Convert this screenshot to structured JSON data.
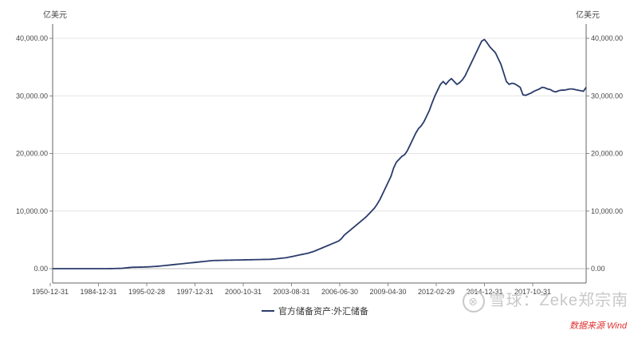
{
  "chart_data": {
    "type": "line",
    "title": "",
    "unit_left": "亿美元",
    "unit_right": "亿美元",
    "ylim": [
      0,
      42500
    ],
    "y_ticks": [
      0,
      10000,
      20000,
      30000,
      40000
    ],
    "y_tick_labels": [
      "0.00",
      "10,000.00",
      "20,000.00",
      "30,000.00",
      "40,000.00"
    ],
    "x_tick_labels": [
      "1950-12-31",
      "1984-12-31",
      "1995-02-28",
      "1997-12-31",
      "2000-10-31",
      "2003-08-31",
      "2006-06-30",
      "2009-04-30",
      "2012-02-29",
      "2014-12-31",
      "2017-10-31"
    ],
    "grid": true,
    "legend_position": "bottom-center",
    "series": [
      {
        "name": "官方储备资产:外汇储备",
        "color": "#2a3b6b",
        "values": [
          0,
          0,
          0,
          0,
          0,
          0,
          0,
          0,
          0,
          0,
          0,
          0,
          0,
          0,
          0,
          0,
          0,
          0,
          0,
          0,
          0,
          10,
          20,
          30,
          40,
          50,
          100,
          150,
          200,
          240,
          250,
          260,
          270,
          280,
          300,
          320,
          350,
          380,
          410,
          450,
          500,
          550,
          600,
          650,
          700,
          750,
          800,
          850,
          900,
          950,
          1000,
          1050,
          1100,
          1150,
          1200,
          1250,
          1300,
          1350,
          1400,
          1420,
          1430,
          1440,
          1450,
          1460,
          1470,
          1480,
          1490,
          1500,
          1510,
          1520,
          1530,
          1540,
          1550,
          1560,
          1570,
          1580,
          1590,
          1600,
          1610,
          1620,
          1650,
          1700,
          1750,
          1800,
          1850,
          1900,
          2000,
          2100,
          2200,
          2300,
          2400,
          2500,
          2600,
          2700,
          2850,
          3000,
          3200,
          3400,
          3600,
          3800,
          4000,
          4200,
          4400,
          4600,
          4800,
          5200,
          5800,
          6200,
          6600,
          7000,
          7400,
          7800,
          8200,
          8600,
          9000,
          9500,
          10000,
          10500,
          11200,
          12000,
          13000,
          14000,
          15000,
          16000,
          17500,
          18500,
          19000,
          19500,
          19800,
          20500,
          21500,
          22500,
          23500,
          24300,
          24800,
          25500,
          26500,
          27500,
          28800,
          30000,
          31000,
          32000,
          32500,
          32000,
          32600,
          33000,
          32500,
          32000,
          32300,
          32800,
          33500,
          34500,
          35500,
          36500,
          37500,
          38500,
          39500,
          39800,
          39200,
          38500,
          38000,
          37500,
          36500,
          35500,
          34000,
          32500,
          32000,
          32200,
          32100,
          31800,
          31500,
          30200,
          30100,
          30300,
          30500,
          30800,
          31000,
          31200,
          31500,
          31400,
          31200,
          31100,
          30800,
          30700,
          30900,
          31000,
          31000,
          31100,
          31200,
          31200,
          31100,
          31000,
          30900,
          30800,
          31500
        ]
      }
    ]
  },
  "watermark": {
    "badge": "⊗",
    "text": "雪球：Zeke郑宗南",
    "source": "数据来源 Wind"
  }
}
